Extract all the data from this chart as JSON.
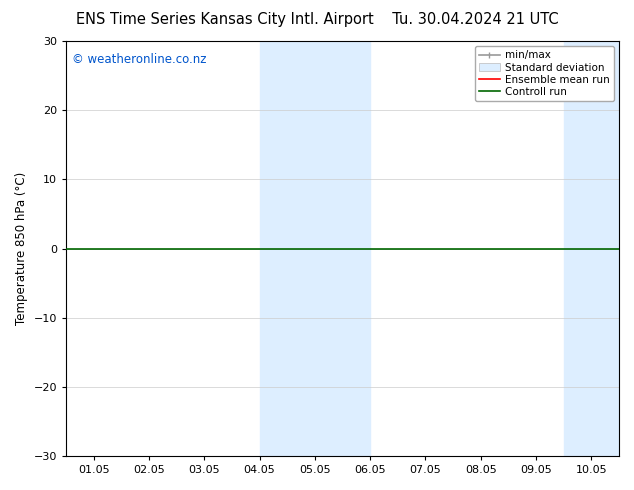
{
  "title_left": "ENS Time Series Kansas City Intl. Airport",
  "title_right": "Tu. 30.04.2024 21 UTC",
  "ylabel": "Temperature 850 hPa (°C)",
  "xlabel": "",
  "ylim": [
    -30,
    30
  ],
  "yticks": [
    -30,
    -20,
    -10,
    0,
    10,
    20,
    30
  ],
  "xtick_labels": [
    "01.05",
    "02.05",
    "03.05",
    "04.05",
    "05.05",
    "06.05",
    "07.05",
    "08.05",
    "09.05",
    "10.05"
  ],
  "xtick_positions": [
    0,
    1,
    2,
    3,
    4,
    5,
    6,
    7,
    8,
    9
  ],
  "xlim": [
    -0.5,
    9.5
  ],
  "watermark": "© weatheronline.co.nz",
  "watermark_color": "#0055cc",
  "bg_color": "#ffffff",
  "shaded_bands": [
    {
      "xstart": 3.0,
      "xend": 4.5,
      "color": "#ddeeff"
    },
    {
      "xstart": 4.5,
      "xend": 5.0,
      "color": "#ddeeff"
    },
    {
      "xstart": 8.5,
      "xend": 9.5,
      "color": "#ddeeff"
    }
  ],
  "hline_y": 0,
  "hline_color": "#006600",
  "hline_lw": 1.2,
  "legend_items": [
    {
      "label": "min/max",
      "color": "#999999",
      "lw": 1.2,
      "style": "line_with_caps"
    },
    {
      "label": "Standard deviation",
      "color": "#ddeeff",
      "lw": 8,
      "style": "band"
    },
    {
      "label": "Ensemble mean run",
      "color": "#ff0000",
      "lw": 1.2,
      "style": "line"
    },
    {
      "label": "Controll run",
      "color": "#006600",
      "lw": 1.2,
      "style": "line"
    }
  ],
  "title_fontsize": 10.5,
  "axis_label_fontsize": 8.5,
  "tick_fontsize": 8,
  "watermark_fontsize": 8.5,
  "legend_fontsize": 7.5,
  "grid_color": "#cccccc",
  "border_color": "#000000"
}
